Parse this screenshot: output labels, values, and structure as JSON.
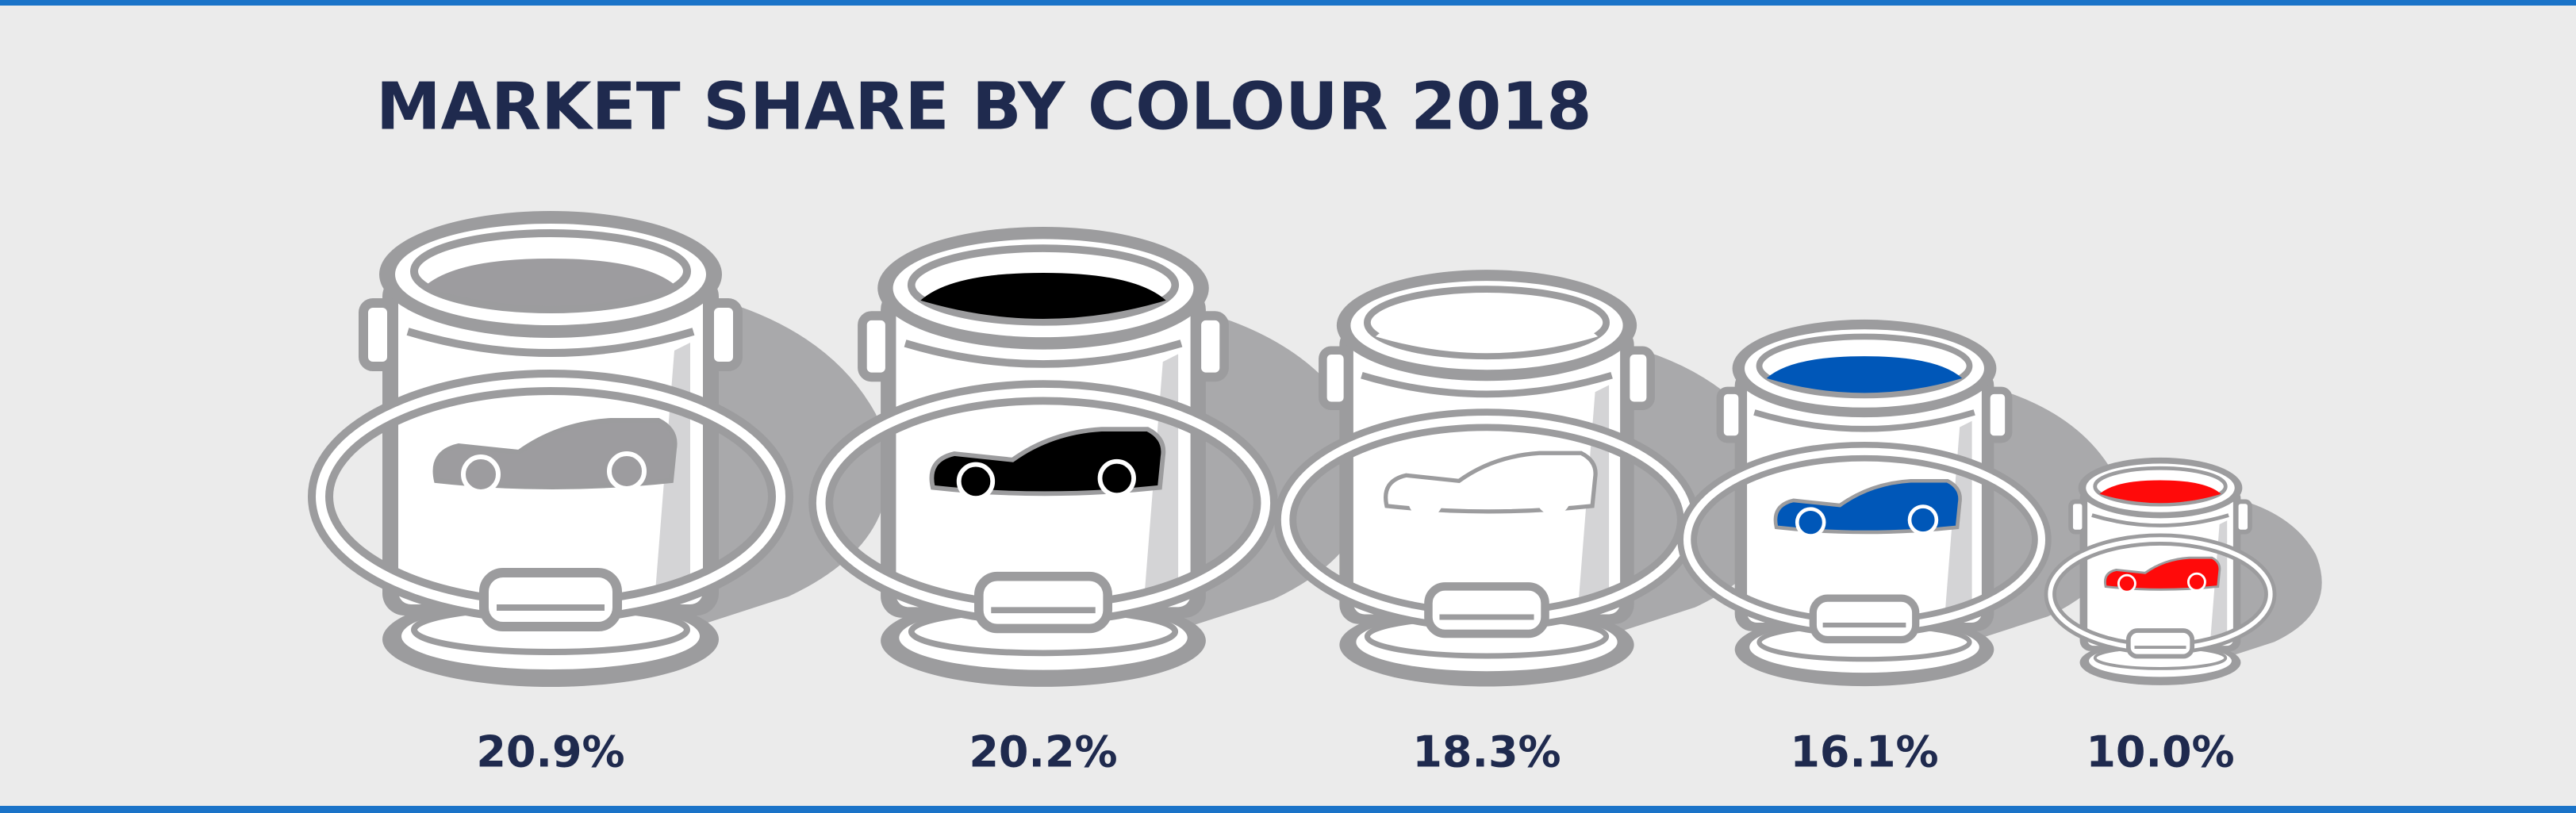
{
  "chart_data": {
    "type": "pictogram",
    "title": "MARKET SHARE BY COLOUR 2018",
    "categories": [
      null,
      null,
      null,
      null,
      null
    ],
    "values": [
      20.9,
      20.2,
      18.3,
      16.1,
      10.0
    ],
    "value_labels": [
      "20.9%",
      "20.2%",
      "18.3%",
      "16.1%",
      "10.0%"
    ],
    "colors": [
      "#9d9c9f",
      "#000000",
      "#ffffff",
      "#0057b8",
      "#ff0a0a"
    ]
  }
}
